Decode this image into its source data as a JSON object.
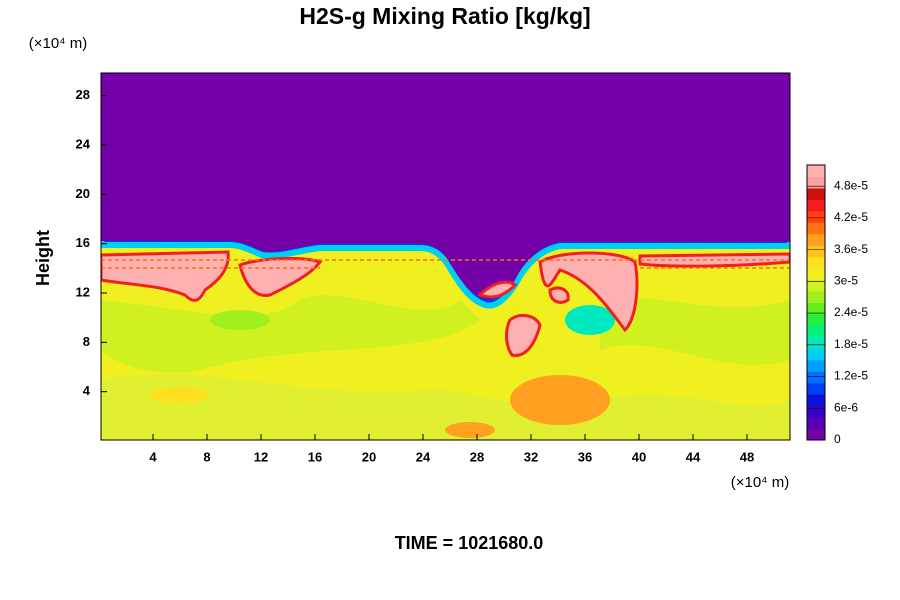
{
  "chart_data": {
    "type": "contour",
    "title": "H2S-g Mixing Ratio [kg/kg]",
    "ylabel": "Height",
    "xunit": "(×10⁴ m)",
    "yunit": "(×10⁴ m)",
    "footer": "TIME = 1021680.0",
    "xlim": [
      0,
      51
    ],
    "xticks": [
      4,
      8,
      12,
      16,
      20,
      24,
      28,
      32,
      36,
      40,
      44,
      48
    ],
    "ylim": [
      0,
      30
    ],
    "yticks": [
      4,
      8,
      12,
      16,
      20,
      24,
      28
    ],
    "colorbar": {
      "lim": [
        0,
        5.2e-05
      ],
      "ticks": [
        0,
        {
          "value": 6e-06,
          "label": "6e-6"
        },
        {
          "value": 1.2e-05,
          "label": "1.2e-5"
        },
        {
          "value": 1.8e-05,
          "label": "1.8e-5"
        },
        {
          "value": 2.4e-05,
          "label": "2.4e-5"
        },
        {
          "value": 3e-05,
          "label": "3e-5"
        },
        {
          "value": 3.6e-05,
          "label": "3.6e-5"
        },
        {
          "value": 4.2e-05,
          "label": "4.2e-5"
        },
        {
          "value": 4.8e-05,
          "label": "4.8e-5"
        }
      ],
      "colors": [
        "#7400a8",
        "#5a00b4",
        "#3a00c8",
        "#1010dc",
        "#0040f0",
        "#0070ff",
        "#00a0ff",
        "#00d0f0",
        "#00e8c0",
        "#00f080",
        "#20f040",
        "#60f020",
        "#a0f020",
        "#d0f020",
        "#f0f020",
        "#ffe020",
        "#ffc020",
        "#ffa020",
        "#ff7010",
        "#ff4010",
        "#f02020",
        "#d01010",
        "#ffa0a0",
        "#ffb0b0"
      ]
    }
  }
}
